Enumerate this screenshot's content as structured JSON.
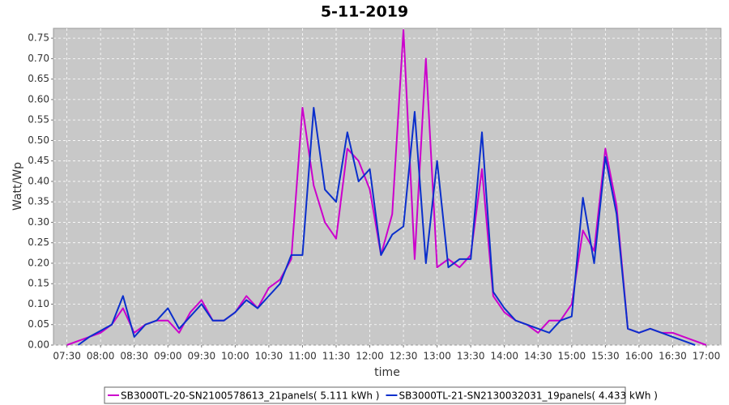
{
  "chart_data": {
    "type": "line",
    "title": "5-11-2019",
    "x_label": "time",
    "y_label": "Watt/Wp",
    "x": [
      "07:30",
      "07:40",
      "07:50",
      "08:00",
      "08:10",
      "08:20",
      "08:30",
      "08:40",
      "08:50",
      "09:00",
      "09:10",
      "09:20",
      "09:30",
      "09:40",
      "09:50",
      "10:00",
      "10:10",
      "10:20",
      "10:30",
      "10:40",
      "10:50",
      "11:00",
      "11:10",
      "11:20",
      "11:30",
      "11:40",
      "11:50",
      "12:00",
      "12:10",
      "12:20",
      "12:30",
      "12:40",
      "12:50",
      "13:00",
      "13:10",
      "13:20",
      "13:30",
      "13:40",
      "13:50",
      "14:00",
      "14:10",
      "14:20",
      "14:30",
      "14:40",
      "14:50",
      "15:00",
      "15:10",
      "15:20",
      "15:30",
      "15:40",
      "15:50",
      "16:00",
      "16:10",
      "16:20",
      "16:30",
      "16:40",
      "16:50",
      "17:00"
    ],
    "series": [
      {
        "name": "SB3000TL-20-SN2100578613_21panels( 5.111 kWh )",
        "color": "#cc00cc",
        "values": [
          0.0,
          0.01,
          0.02,
          0.03,
          0.05,
          0.09,
          0.03,
          0.05,
          0.06,
          0.06,
          0.03,
          0.08,
          0.11,
          0.06,
          0.06,
          0.08,
          0.12,
          0.09,
          0.14,
          0.16,
          0.21,
          0.58,
          0.39,
          0.3,
          0.26,
          0.48,
          0.45,
          0.38,
          0.22,
          0.32,
          0.77,
          0.21,
          0.7,
          0.19,
          0.21,
          0.19,
          0.22,
          0.43,
          0.12,
          0.08,
          0.06,
          0.05,
          0.03,
          0.06,
          0.06,
          0.1,
          0.28,
          0.23,
          0.48,
          0.34,
          0.04,
          0.03,
          0.04,
          0.03,
          0.03,
          0.02,
          0.01,
          0.0
        ]
      },
      {
        "name": "SB3000TL-21-SN2130032031_19panels( 4.433 kWh )",
        "color": "#0a2fcc",
        "values": [
          null,
          0.0,
          0.02,
          0.035,
          0.05,
          0.12,
          0.02,
          0.05,
          0.06,
          0.09,
          0.04,
          0.07,
          0.1,
          0.06,
          0.06,
          0.08,
          0.11,
          0.09,
          0.12,
          0.15,
          0.22,
          0.22,
          0.58,
          0.38,
          0.35,
          0.52,
          0.4,
          0.43,
          0.22,
          0.27,
          0.29,
          0.57,
          0.2,
          0.45,
          0.19,
          0.21,
          0.21,
          0.52,
          0.13,
          0.09,
          0.06,
          0.05,
          0.04,
          0.03,
          0.06,
          0.07,
          0.36,
          0.2,
          0.46,
          0.32,
          0.04,
          0.03,
          0.04,
          0.03,
          0.02,
          0.01,
          0.0,
          null
        ]
      }
    ],
    "xlim": [
      "07:18",
      "17:13"
    ],
    "xticks": [
      "07:30",
      "08:00",
      "08:30",
      "09:00",
      "09:30",
      "10:00",
      "10:30",
      "11:00",
      "11:30",
      "12:00",
      "12:30",
      "13:00",
      "13:30",
      "14:00",
      "14:30",
      "15:00",
      "15:30",
      "16:00",
      "16:30",
      "17:00"
    ],
    "ylim": [
      0,
      0.774
    ],
    "yticks": [
      {
        "value": 0,
        "label": "0.00"
      },
      {
        "value": 0.05,
        "label": "0.05"
      },
      {
        "value": 0.1,
        "label": "0.10"
      },
      {
        "value": 0.15,
        "label": "0.15"
      },
      {
        "value": 0.2,
        "label": "0.20"
      },
      {
        "value": 0.25,
        "label": "0.25"
      },
      {
        "value": 0.3,
        "label": "0.30"
      },
      {
        "value": 0.35,
        "label": "0.35"
      },
      {
        "value": 0.4,
        "label": "0.40"
      },
      {
        "value": 0.45,
        "label": "0.45"
      },
      {
        "value": 0.5,
        "label": "0.50"
      },
      {
        "value": 0.55,
        "label": "0.55"
      },
      {
        "value": 0.6,
        "label": "0.60"
      },
      {
        "value": 0.65,
        "label": "0.65"
      },
      {
        "value": 0.7,
        "label": "0.70"
      },
      {
        "value": 0.75,
        "label": "0.75"
      }
    ],
    "grid": true,
    "legend": "bottom"
  }
}
